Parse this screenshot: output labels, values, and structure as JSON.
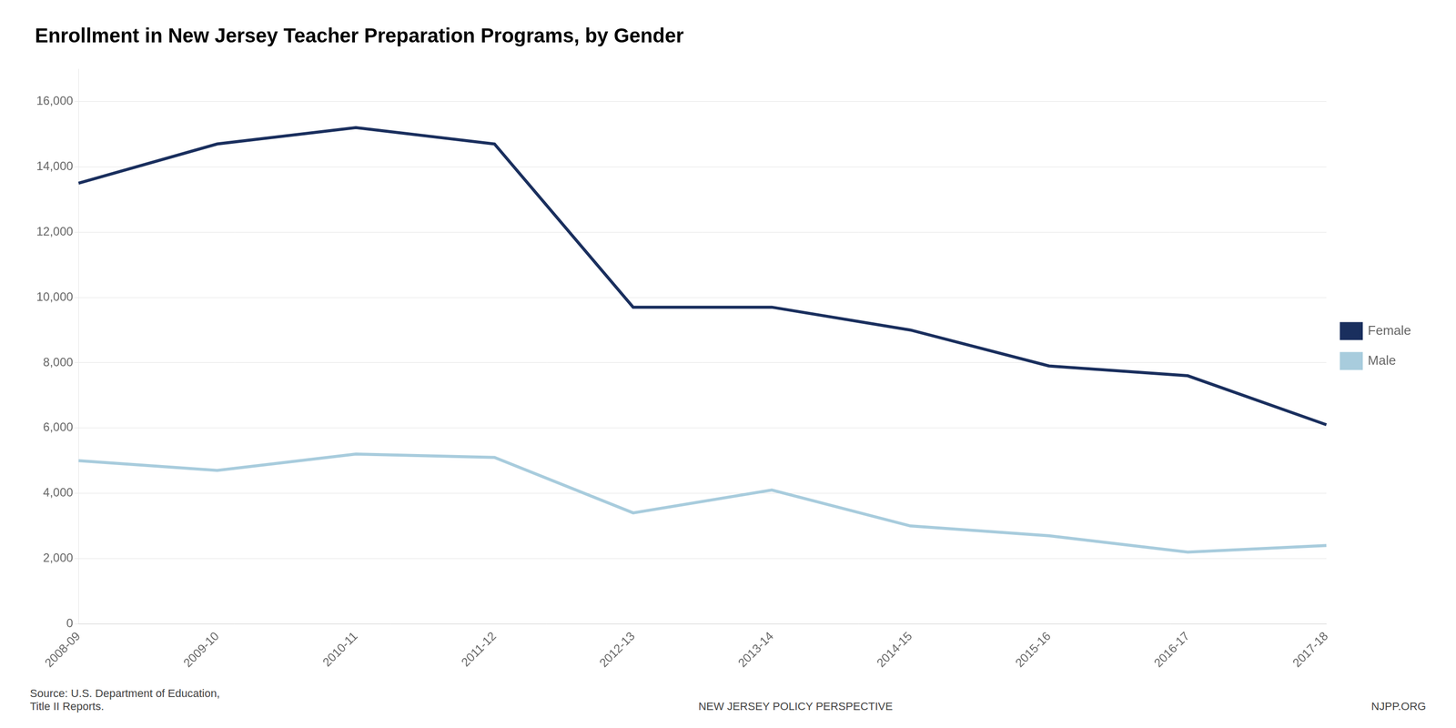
{
  "chart_data": {
    "type": "line",
    "title": "Enrollment in New Jersey Teacher Preparation Programs, by Gender",
    "categories": [
      "2008-09",
      "2009-10",
      "2010-11",
      "2011-12",
      "2012-13",
      "2013-14",
      "2014-15",
      "2015-16",
      "2016-17",
      "2017-18"
    ],
    "series": [
      {
        "name": "Female",
        "color": "#1a2f5e",
        "values": [
          13500,
          14700,
          15200,
          14700,
          9700,
          9700,
          9000,
          7900,
          7600,
          6100
        ]
      },
      {
        "name": "Male",
        "color": "#a8ccdd",
        "values": [
          5000,
          4700,
          5200,
          5100,
          3400,
          4100,
          3000,
          2700,
          2200,
          2400
        ]
      }
    ],
    "ylim": [
      0,
      17000
    ],
    "yticks": [
      0,
      {
        "value": 2000,
        "label": "2,000"
      },
      {
        "value": 4000,
        "label": "4,000"
      },
      {
        "value": 6000,
        "label": "6,000"
      },
      {
        "value": 8000,
        "label": "8,000"
      },
      {
        "value": 10000,
        "label": "10,000"
      },
      {
        "value": 12000,
        "label": "12,000"
      },
      {
        "value": 14000,
        "label": "14,000"
      },
      {
        "value": 16000,
        "label": "16,000"
      }
    ],
    "grid": true,
    "legend": "right",
    "annotations": [
      "Source: U.S. Department of Education,\nTitle II Reports.",
      "NEW JERSEY POLICY PERSPECTIVE",
      "NJPP.ORG"
    ]
  }
}
